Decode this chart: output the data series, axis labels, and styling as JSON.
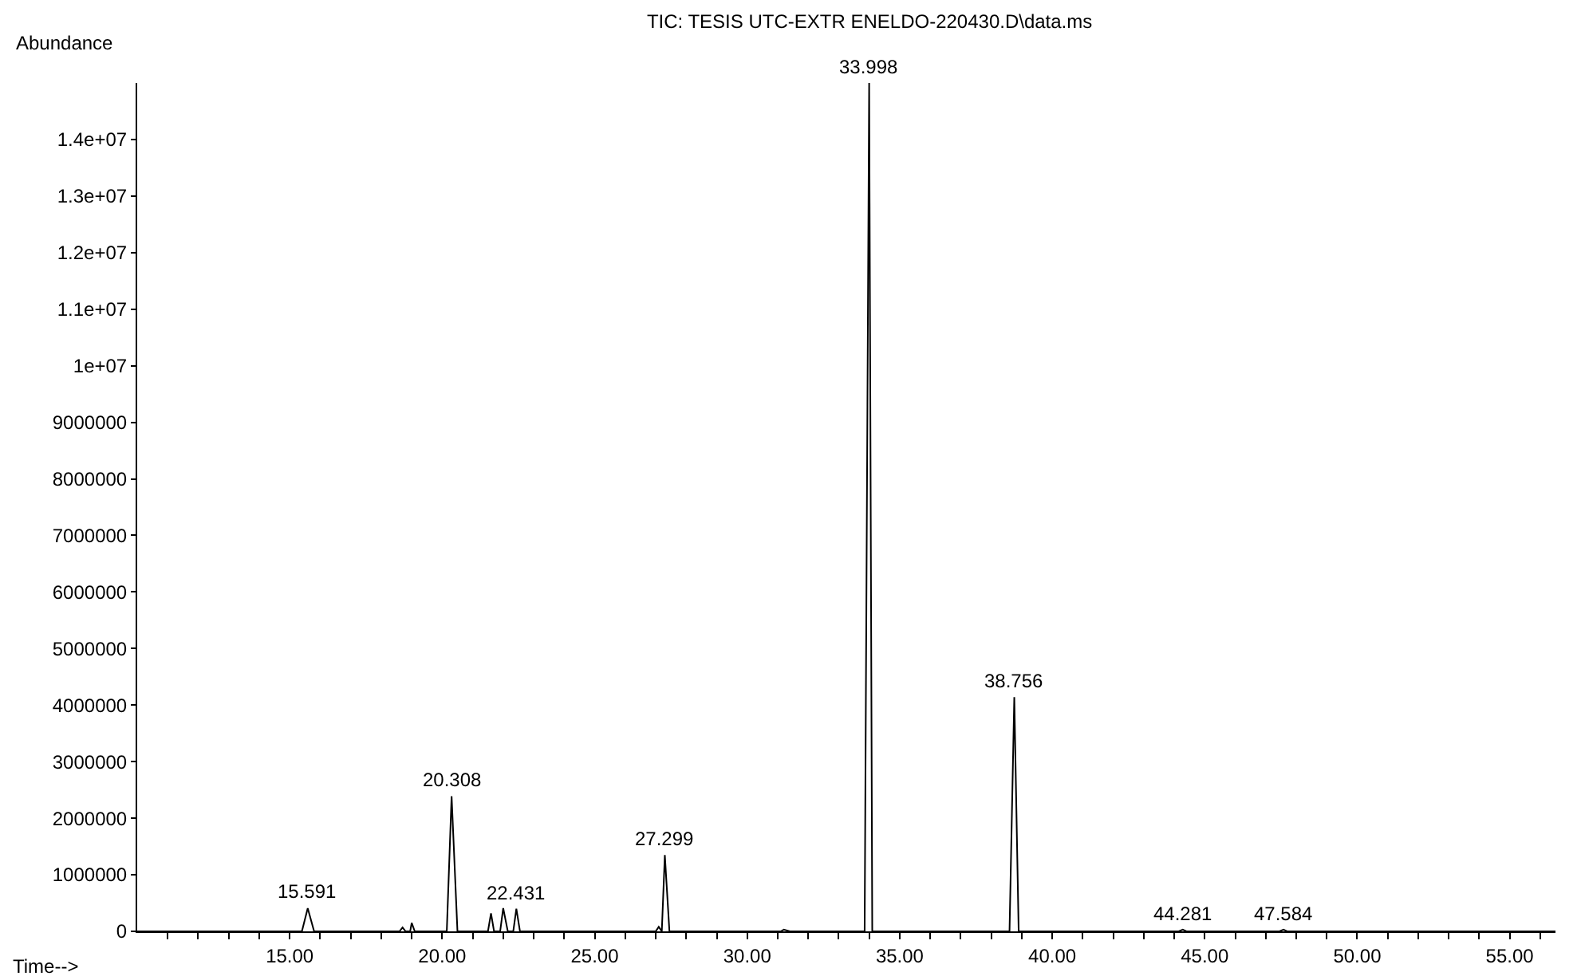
{
  "chart_data": {
    "type": "line",
    "title": "TIC: TESIS UTC-EXTR ENELDO-220430.D\\data.ms",
    "xlabel": "Time-->",
    "ylabel": "Abundance",
    "x": [
      10,
      15.4,
      15.591,
      15.8,
      18.6,
      18.7,
      18.8,
      18.95,
      19.0,
      19.1,
      20.15,
      20.308,
      20.5,
      21.5,
      21.6,
      21.7,
      21.9,
      22.0,
      22.15,
      22.33,
      22.431,
      22.55,
      27.0,
      27.1,
      27.2,
      27.299,
      27.45,
      31.1,
      31.2,
      31.4,
      33.7,
      33.85,
      33.998,
      34.1,
      38.6,
      38.756,
      38.9,
      44.15,
      44.281,
      44.4,
      47.45,
      47.584,
      47.7,
      56.5
    ],
    "series": [
      {
        "color": "#000000",
        "values": [
          0,
          0,
          410000,
          0,
          0,
          70000,
          0,
          0,
          150000,
          0,
          0,
          2390000,
          0,
          0,
          320000,
          0,
          0,
          410000,
          0,
          0,
          400000,
          0,
          0,
          80000,
          0,
          1350000,
          0,
          0,
          30000,
          0,
          0,
          0,
          15000000,
          0,
          0,
          4140000,
          0,
          0,
          30000,
          0,
          0,
          30000,
          0,
          0
        ]
      }
    ],
    "xlim": [
      10,
      56.5
    ],
    "xticks": [
      {
        "value": 11,
        "label": null
      },
      {
        "value": 12,
        "label": null
      },
      {
        "value": 13,
        "label": null
      },
      {
        "value": 14,
        "label": null
      },
      {
        "value": 15,
        "label": "15.00"
      },
      {
        "value": 16,
        "label": null
      },
      {
        "value": 17,
        "label": null
      },
      {
        "value": 18,
        "label": null
      },
      {
        "value": 19,
        "label": null
      },
      {
        "value": 20,
        "label": "20.00"
      },
      {
        "value": 21,
        "label": null
      },
      {
        "value": 22,
        "label": null
      },
      {
        "value": 23,
        "label": null
      },
      {
        "value": 24,
        "label": null
      },
      {
        "value": 25,
        "label": "25.00"
      },
      {
        "value": 26,
        "label": null
      },
      {
        "value": 27,
        "label": null
      },
      {
        "value": 28,
        "label": null
      },
      {
        "value": 29,
        "label": null
      },
      {
        "value": 30,
        "label": "30.00"
      },
      {
        "value": 31,
        "label": null
      },
      {
        "value": 32,
        "label": null
      },
      {
        "value": 33,
        "label": null
      },
      {
        "value": 34,
        "label": null
      },
      {
        "value": 35,
        "label": "35.00"
      },
      {
        "value": 36,
        "label": null
      },
      {
        "value": 37,
        "label": null
      },
      {
        "value": 38,
        "label": null
      },
      {
        "value": 39,
        "label": null
      },
      {
        "value": 40,
        "label": "40.00"
      },
      {
        "value": 41,
        "label": null
      },
      {
        "value": 42,
        "label": null
      },
      {
        "value": 43,
        "label": null
      },
      {
        "value": 44,
        "label": null
      },
      {
        "value": 45,
        "label": "45.00"
      },
      {
        "value": 46,
        "label": null
      },
      {
        "value": 47,
        "label": null
      },
      {
        "value": 48,
        "label": null
      },
      {
        "value": 49,
        "label": null
      },
      {
        "value": 50,
        "label": "50.00"
      },
      {
        "value": 51,
        "label": null
      },
      {
        "value": 52,
        "label": null
      },
      {
        "value": 53,
        "label": null
      },
      {
        "value": 54,
        "label": null
      },
      {
        "value": 55,
        "label": "55.00"
      },
      {
        "value": 56,
        "label": null
      }
    ],
    "ylim": [
      0,
      15000000
    ],
    "yticks": [
      0,
      1000000,
      2000000,
      3000000,
      4000000,
      5000000,
      6000000,
      7000000,
      8000000,
      9000000,
      {
        "value": 10000000,
        "label": "1e+07"
      },
      {
        "value": 11000000,
        "label": "1.1e+07"
      },
      {
        "value": 12000000,
        "label": "1.2e+07"
      },
      {
        "value": 13000000,
        "label": "1.3e+07"
      },
      {
        "value": 14000000,
        "label": "1.4e+07"
      }
    ],
    "annotations": [
      {
        "text": "15.591",
        "x": 15.591,
        "y": 410000
      },
      {
        "text": "20.308",
        "x": 20.308,
        "y": 2390000
      },
      {
        "text": "22.431",
        "x": 22.431,
        "y": 400000
      },
      {
        "text": "27.299",
        "x": 27.299,
        "y": 1350000
      },
      {
        "text": "33.998",
        "x": 33.998,
        "y": 15000000
      },
      {
        "text": "38.756",
        "x": 38.756,
        "y": 4140000
      },
      {
        "text": "44.281",
        "x": 44.281,
        "y": 30000
      },
      {
        "text": "47.584",
        "x": 47.584,
        "y": 30000
      }
    ],
    "grid": false,
    "marker": "none",
    "line_style": "solid"
  }
}
